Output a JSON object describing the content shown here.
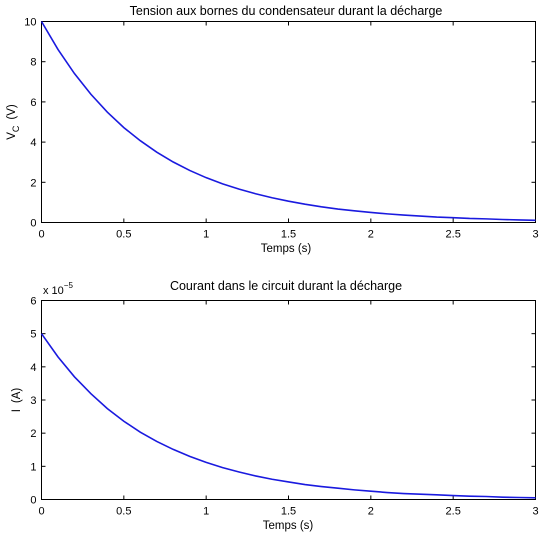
{
  "chart_data": [
    {
      "type": "line",
      "title": "Tension aux bornes du condensateur durant la décharge",
      "xlabel": "Temps (s)",
      "ylabel_main": "V",
      "ylabel_sub": "C",
      "ylabel_unit": "(V)",
      "xlim": [
        0,
        3
      ],
      "ylim": [
        0,
        10
      ],
      "xticks": [
        0,
        0.5,
        1,
        1.5,
        2,
        2.5,
        3
      ],
      "xtick_labels": [
        "0",
        "0.5",
        "1",
        "1.5",
        "2",
        "2.5",
        "3"
      ],
      "yticks": [
        0,
        2,
        4,
        6,
        8,
        10
      ],
      "ytick_labels": [
        "0",
        "2",
        "4",
        "6",
        "8",
        "10"
      ],
      "scale_note": "",
      "grid": false,
      "color": "#1a1adf",
      "series": [
        {
          "x": [
            0,
            0.1,
            0.2,
            0.3,
            0.4,
            0.5,
            0.6,
            0.7,
            0.8,
            0.9,
            1,
            1.1,
            1.2,
            1.3,
            1.4,
            1.5,
            1.6,
            1.7,
            1.8,
            1.9,
            2,
            2.1,
            2.2,
            2.3,
            2.4,
            2.5,
            2.6,
            2.7,
            2.8,
            2.9,
            3
          ],
          "y": [
            10,
            8.61,
            7.41,
            6.38,
            5.49,
            4.72,
            4.07,
            3.5,
            3.01,
            2.59,
            2.23,
            1.92,
            1.66,
            1.43,
            1.23,
            1.06,
            0.91,
            0.78,
            0.67,
            0.58,
            0.5,
            0.43,
            0.37,
            0.32,
            0.27,
            0.24,
            0.2,
            0.18,
            0.15,
            0.13,
            0.11
          ]
        }
      ]
    },
    {
      "type": "line",
      "title": "Courant dans le circuit durant la décharge",
      "xlabel": "Temps (s)",
      "ylabel_main": "I",
      "ylabel_sub": "",
      "ylabel_unit": "(A)",
      "xlim": [
        0,
        3
      ],
      "ylim": [
        0,
        6
      ],
      "xticks": [
        0,
        0.5,
        1,
        1.5,
        2,
        2.5,
        3
      ],
      "xtick_labels": [
        "0",
        "0.5",
        "1",
        "1.5",
        "2",
        "2.5",
        "3"
      ],
      "yticks": [
        0,
        1,
        2,
        3,
        4,
        5,
        6
      ],
      "ytick_labels": [
        "0",
        "1",
        "2",
        "3",
        "4",
        "5",
        "6"
      ],
      "scale_note": "x 10",
      "scale_exp": "−5",
      "grid": false,
      "color": "#1a1adf",
      "series": [
        {
          "x": [
            0,
            0.1,
            0.2,
            0.3,
            0.4,
            0.5,
            0.6,
            0.7,
            0.8,
            0.9,
            1,
            1.1,
            1.2,
            1.3,
            1.4,
            1.5,
            1.6,
            1.7,
            1.8,
            1.9,
            2,
            2.1,
            2.2,
            2.3,
            2.4,
            2.5,
            2.6,
            2.7,
            2.8,
            2.9,
            3
          ],
          "y": [
            5,
            4.3,
            3.7,
            3.19,
            2.74,
            2.36,
            2.03,
            1.75,
            1.51,
            1.3,
            1.12,
            0.96,
            0.83,
            0.71,
            0.61,
            0.53,
            0.45,
            0.39,
            0.34,
            0.29,
            0.25,
            0.21,
            0.18,
            0.16,
            0.14,
            0.12,
            0.1,
            0.09,
            0.07,
            0.06,
            0.05
          ]
        }
      ]
    }
  ]
}
